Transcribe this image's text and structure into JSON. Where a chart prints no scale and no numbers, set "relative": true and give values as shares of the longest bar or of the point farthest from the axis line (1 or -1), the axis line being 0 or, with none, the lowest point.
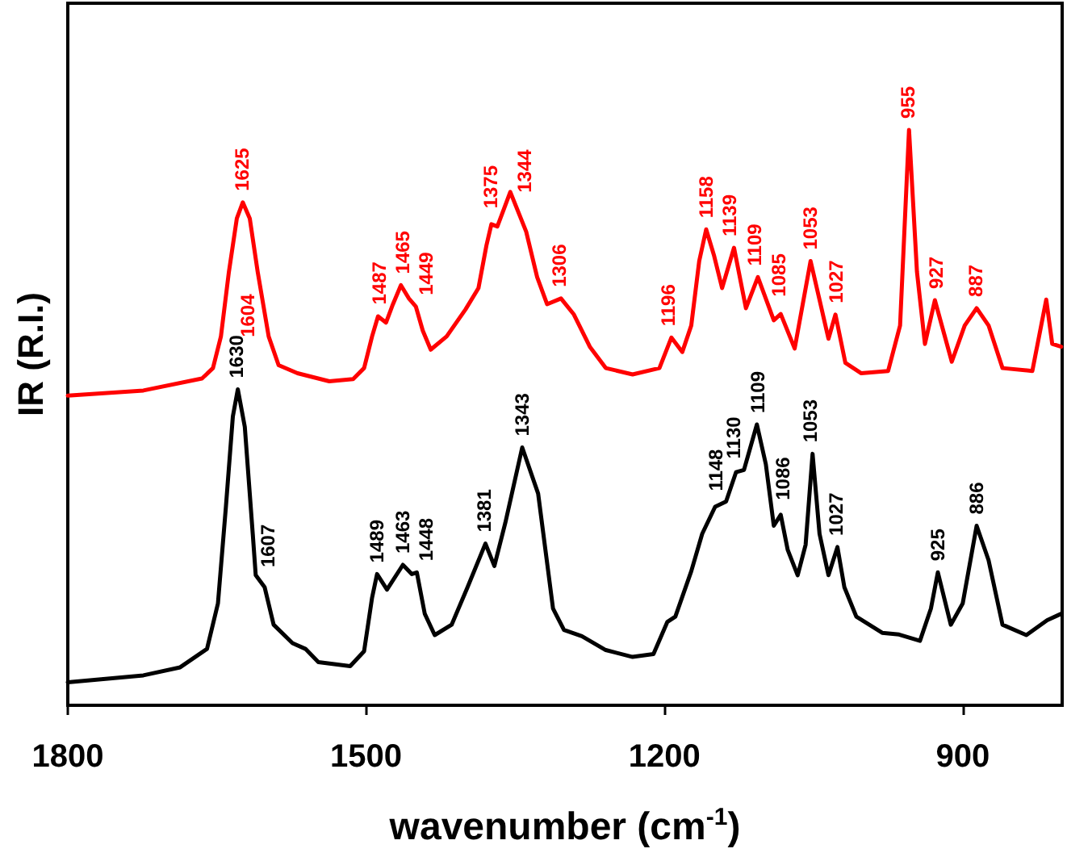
{
  "chart_data": {
    "type": "line",
    "xlabel": "wavenumber (cm$^{-1}$)",
    "ylabel": "IR (R.I.)",
    "xlim": [
      1800,
      800
    ],
    "xticks": [
      1800,
      1500,
      1200,
      900
    ],
    "relative": true,
    "marker": "none",
    "series": [
      {
        "color": "#ff0000",
        "x": [
          1800,
          1724,
          1665,
          1654,
          1646,
          1638,
          1630,
          1624,
          1617,
          1609,
          1598,
          1588,
          1569,
          1537,
          1513,
          1502,
          1494,
          1488,
          1480,
          1473,
          1465,
          1457,
          1450,
          1443,
          1435,
          1419,
          1400,
          1387,
          1379,
          1374,
          1368,
          1355,
          1339,
          1328,
          1318,
          1304,
          1291,
          1275,
          1259,
          1232,
          1205,
          1193,
          1182,
          1173,
          1165,
          1158,
          1150,
          1142,
          1130,
          1118,
          1106,
          1090,
          1083,
          1069,
          1053,
          1035,
          1028,
          1018,
          1002,
          975,
          963,
          954,
          946,
          938,
          928,
          911,
          898,
          886,
          874,
          860,
          830,
          816,
          810,
          801
        ],
        "values": [
          0.538,
          0.547,
          0.568,
          0.586,
          0.641,
          0.753,
          0.846,
          0.874,
          0.846,
          0.753,
          0.641,
          0.591,
          0.577,
          0.563,
          0.567,
          0.586,
          0.641,
          0.676,
          0.665,
          0.697,
          0.73,
          0.707,
          0.693,
          0.651,
          0.618,
          0.641,
          0.688,
          0.725,
          0.799,
          0.836,
          0.832,
          0.892,
          0.823,
          0.744,
          0.697,
          0.707,
          0.679,
          0.623,
          0.586,
          0.575,
          0.586,
          0.639,
          0.614,
          0.66,
          0.772,
          0.827,
          0.781,
          0.725,
          0.795,
          0.69,
          0.744,
          0.669,
          0.68,
          0.62,
          0.772,
          0.637,
          0.679,
          0.595,
          0.577,
          0.581,
          0.66,
          1.0,
          0.753,
          0.628,
          0.704,
          0.597,
          0.66,
          0.69,
          0.66,
          0.586,
          0.581,
          0.705,
          0.628,
          0.623
        ]
      },
      {
        "color": "#000000",
        "x": [
          1800,
          1724,
          1687,
          1660,
          1649,
          1641,
          1634,
          1629,
          1622,
          1614,
          1611,
          1602,
          1593,
          1574,
          1561,
          1548,
          1516,
          1502,
          1494,
          1489,
          1479,
          1463,
          1454,
          1449,
          1441,
          1431,
          1414,
          1398,
          1380,
          1371,
          1360,
          1343,
          1327,
          1312,
          1301,
          1283,
          1259,
          1232,
          1211,
          1197,
          1189,
          1173,
          1162,
          1149,
          1138,
          1128,
          1120,
          1107,
          1098,
          1090,
          1083,
          1076,
          1066,
          1058,
          1051,
          1044,
          1035,
          1026,
          1019,
          1007,
          981,
          964,
          943,
          932,
          925,
          912,
          900,
          886,
          874,
          860,
          836,
          815,
          801
        ],
        "values": [
          0.04,
          0.052,
          0.066,
          0.098,
          0.177,
          0.345,
          0.502,
          0.549,
          0.484,
          0.298,
          0.226,
          0.205,
          0.14,
          0.108,
          0.098,
          0.075,
          0.068,
          0.094,
          0.187,
          0.228,
          0.201,
          0.244,
          0.228,
          0.231,
          0.159,
          0.122,
          0.14,
          0.205,
          0.281,
          0.242,
          0.317,
          0.448,
          0.368,
          0.168,
          0.131,
          0.12,
          0.096,
          0.084,
          0.089,
          0.145,
          0.154,
          0.233,
          0.298,
          0.345,
          0.354,
          0.405,
          0.409,
          0.488,
          0.419,
          0.312,
          0.331,
          0.27,
          0.226,
          0.279,
          0.437,
          0.298,
          0.226,
          0.275,
          0.205,
          0.154,
          0.126,
          0.123,
          0.112,
          0.168,
          0.231,
          0.14,
          0.177,
          0.312,
          0.252,
          0.14,
          0.122,
          0.148,
          0.159
        ]
      }
    ],
    "annotations": [
      {
        "text": "1625",
        "x": 1625,
        "y": 0.874
      },
      {
        "text": "1604",
        "x": 1604,
        "y": 0.62
      },
      {
        "text": "1487",
        "x": 1487,
        "y": 0.676
      },
      {
        "text": "1465",
        "x": 1465,
        "y": 0.73
      },
      {
        "text": "1449",
        "x": 1449,
        "y": 0.693
      },
      {
        "text": "1375",
        "x": 1375,
        "y": 0.836
      },
      {
        "text": "1344",
        "x": 1344,
        "y": 0.86
      },
      {
        "text": "1306",
        "x": 1306,
        "y": 0.707
      },
      {
        "text": "1196",
        "x": 1196,
        "y": 0.639
      },
      {
        "text": "1158",
        "x": 1158,
        "y": 0.827
      },
      {
        "text": "1139",
        "x": 1139,
        "y": 0.795
      },
      {
        "text": "1109",
        "x": 1109,
        "y": 0.744
      },
      {
        "text": "1085",
        "x": 1085,
        "y": 0.68
      },
      {
        "text": "1053",
        "x": 1053,
        "y": 0.772
      },
      {
        "text": "1027",
        "x": 1027,
        "y": 0.679
      },
      {
        "text": "955",
        "x": 955,
        "y": 1.0
      },
      {
        "text": "927",
        "x": 927,
        "y": 0.704
      },
      {
        "text": "887",
        "x": 887,
        "y": 0.69
      },
      {
        "text": "1630",
        "x": 1630,
        "y": 0.549
      },
      {
        "text": "1607",
        "x": 1607,
        "y": 0.22
      },
      {
        "text": "1489",
        "x": 1489,
        "y": 0.228
      },
      {
        "text": "1463",
        "x": 1463,
        "y": 0.244
      },
      {
        "text": "1448",
        "x": 1448,
        "y": 0.231
      },
      {
        "text": "1381",
        "x": 1381,
        "y": 0.281
      },
      {
        "text": "1343",
        "x": 1343,
        "y": 0.448
      },
      {
        "text": "1148",
        "x": 1148,
        "y": 0.345
      },
      {
        "text": "1130",
        "x": 1130,
        "y": 0.405
      },
      {
        "text": "1109",
        "x": 1109,
        "y": 0.488
      },
      {
        "text": "1086",
        "x": 1086,
        "y": 0.331
      },
      {
        "text": "1053",
        "x": 1053,
        "y": 0.437
      },
      {
        "text": "1027",
        "x": 1027,
        "y": 0.275
      },
      {
        "text": "925",
        "x": 925,
        "y": 0.231
      },
      {
        "text": "886",
        "x": 886,
        "y": 0.312
      }
    ]
  }
}
